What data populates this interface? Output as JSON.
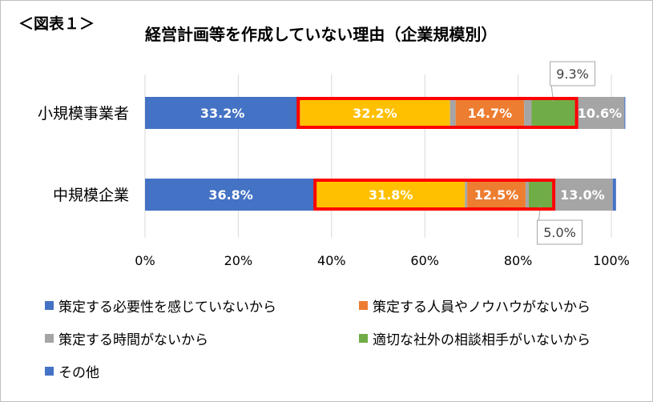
{
  "figure_label": "＜図表１＞",
  "chart_data": {
    "type": "bar",
    "orientation": "horizontal",
    "stacked": true,
    "title": "経営計画等を作成していない理由（企業規模別）",
    "categories": [
      "小規模事業者",
      "中規模企業"
    ],
    "series": [
      {
        "name": "策定する必要性を感じていないから",
        "color": "#4472C4",
        "values": [
          33.2,
          36.8
        ]
      },
      {
        "name": "策定する時間がないから",
        "color": "#FFC000",
        "values": [
          32.2,
          31.8
        ]
      },
      {
        "name": "",
        "color": "#A5A5A5",
        "values": [
          1.2,
          0.5
        ]
      },
      {
        "name": "策定する人員やノウハウがないから",
        "color": "#ED7D31",
        "values": [
          14.7,
          12.5
        ]
      },
      {
        "name": "",
        "color": "#A5A5A5",
        "values": [
          1.6,
          0.7
        ]
      },
      {
        "name": "適切な社外の相談相手がいないから",
        "color": "#70AD47",
        "values": [
          9.3,
          5.0
        ]
      },
      {
        "name": "",
        "color": "#A5A5A5",
        "values": [
          10.6,
          13.0
        ]
      },
      {
        "name": "その他",
        "color": "#4472C4",
        "values": [
          0.2,
          0.7
        ]
      }
    ],
    "data_labels": [
      {
        "category": 0,
        "series": 0,
        "text": "33.2%",
        "position": "inside"
      },
      {
        "category": 0,
        "series": 1,
        "text": "32.2%",
        "position": "inside"
      },
      {
        "category": 0,
        "series": 3,
        "text": "14.7%",
        "position": "inside"
      },
      {
        "category": 0,
        "series": 5,
        "text": "9.3%",
        "position": "callout-above"
      },
      {
        "category": 0,
        "series": 6,
        "text": "10.6%",
        "position": "inside"
      },
      {
        "category": 1,
        "series": 0,
        "text": "36.8%",
        "position": "inside"
      },
      {
        "category": 1,
        "series": 1,
        "text": "31.8%",
        "position": "inside"
      },
      {
        "category": 1,
        "series": 3,
        "text": "12.5%",
        "position": "inside"
      },
      {
        "category": 1,
        "series": 5,
        "text": "5.0%",
        "position": "callout-below"
      },
      {
        "category": 1,
        "series": 6,
        "text": "13.0%",
        "position": "inside"
      }
    ],
    "highlight_boxes": [
      {
        "category": 0,
        "from_series": 1,
        "to_series": 5,
        "color": "#FF0000"
      },
      {
        "category": 1,
        "from_series": 1,
        "to_series": 5,
        "color": "#FF0000"
      }
    ],
    "x_ticks": [
      "0%",
      "20%",
      "40%",
      "60%",
      "80%",
      "100%"
    ],
    "xlim": [
      0,
      100
    ],
    "grid": true,
    "legend": {
      "position": "bottom",
      "items": [
        {
          "label": "策定する必要性を感じていないから",
          "color": "#4472C4"
        },
        {
          "label": "策定する人員やノウハウがないから",
          "color": "#ED7D31"
        },
        {
          "label": "策定する時間がないから",
          "color": "#A5A5A5"
        },
        {
          "label": "適切な社外の相談相手がいないから",
          "color": "#70AD47"
        },
        {
          "label": "その他",
          "color": "#4472C4"
        }
      ]
    }
  }
}
